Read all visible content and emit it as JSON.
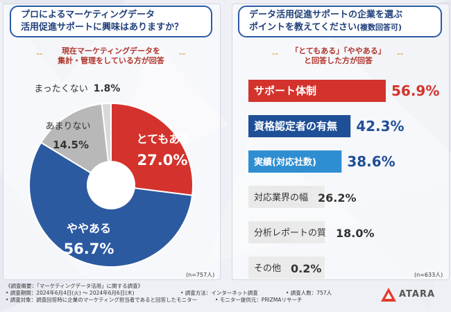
{
  "left": {
    "question": [
      "プロによるマーケティングデータ",
      "活用促進サポートに興味はありますか？"
    ],
    "subtitle": [
      "現在マーケティングデータを",
      "集計・管理をしている方が回答"
    ],
    "n_label": "(n=757人)",
    "colors": {
      "totemo": "#d3332c",
      "yaya": "#2c5aa0",
      "amari": "#b8b8b8",
      "mattaku": "#d9d9d9"
    }
  },
  "right": {
    "question_line1": "データ活用促進サポートの企業を選ぶ",
    "question_line2_main": "ポイントを教えてください",
    "question_line2_small": "(複数回答可)",
    "subtitle": [
      "「とてもある」「ややある」",
      "と回答した方が回答"
    ],
    "n_label": "(n=633人)",
    "colors": {
      "top": "#d3332c",
      "second": "#1f4f96",
      "third": "#2f8ed1",
      "rest": "#e9e9e9"
    }
  },
  "chart_data": [
    {
      "type": "pie",
      "title": "プロによるマーケティングデータ活用促進サポートに興味はありますか？",
      "categories": [
        "とてもある",
        "ややある",
        "あまりない",
        "まったくない"
      ],
      "values": [
        27.0,
        56.7,
        14.5,
        1.8
      ],
      "unit": "%"
    },
    {
      "type": "bar",
      "title": "データ活用促進サポートの企業を選ぶポイントを教えてください(複数回答可)",
      "categories": [
        "サポート体制",
        "資格認定者の有無",
        "実績(対応社数)",
        "対応業界の幅",
        "分析レポートの質",
        "その他"
      ],
      "values": [
        56.9,
        42.3,
        38.6,
        26.2,
        18.0,
        0.2
      ],
      "unit": "%"
    }
  ],
  "footer": {
    "line1": "《調査概要：「マーケティングデータ活用」に関する調査》",
    "line2_period": "• 調査期間：2024年6月4日(火) 〜 2024年6月6日(木)",
    "line2_method": "• 調査方法：インターネット調査",
    "line2_count": "• 調査人数：757人",
    "line3_target": "• 調査対象：調査回答時に企業のマーケティング担当者であると回答したモニター",
    "line3_provider": "• モニター提供元：PRIZMAリサーチ"
  },
  "logo": {
    "text": "ATARA"
  }
}
